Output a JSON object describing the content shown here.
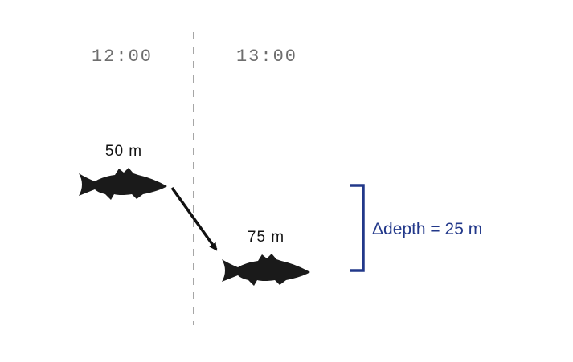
{
  "times": [
    "12:00",
    "13:00"
  ],
  "fish": [
    {
      "label": "50 m"
    },
    {
      "label": "75 m"
    }
  ],
  "bracket": {
    "label": "Δdepth = 25 m"
  }
}
